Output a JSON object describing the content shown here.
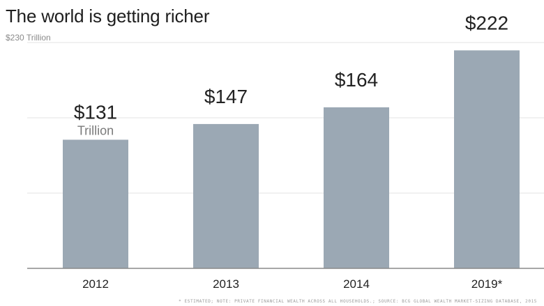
{
  "chart_data": {
    "type": "bar",
    "title": "The world is getting richer",
    "y_top_label": "$230 Trillion",
    "categories": [
      "2012",
      "2013",
      "2014",
      "2019*"
    ],
    "values": [
      131,
      147,
      164,
      222
    ],
    "value_labels": [
      "$131",
      "$147",
      "$164",
      "$222"
    ],
    "unit_label": "Trillion",
    "ylim": [
      0,
      230
    ],
    "grid": true,
    "bar_color": "#9ba8b4",
    "gridline_color": "#e3e3e3",
    "axis_color": "#8a8a8a",
    "footnote": "* ESTIMATED; NOTE: PRIVATE FINANCIAL WEALTH ACROSS ALL HOUSEHOLDS.; SOURCE: BCG GLOBAL WEALTH MARKET-SIZING DATABASE, 2015"
  }
}
